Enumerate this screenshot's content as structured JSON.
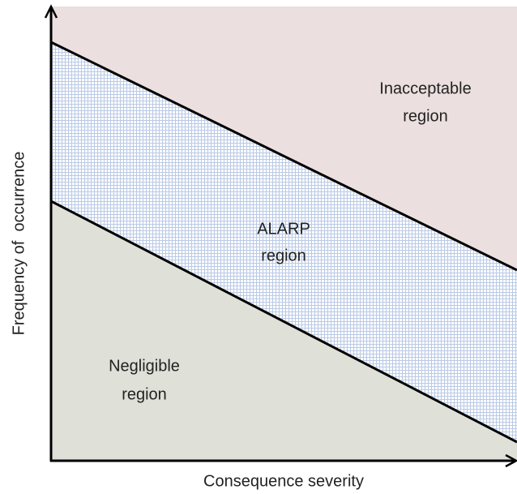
{
  "axes": {
    "x_label": "Consequence severity",
    "y_label": "Frequency of  occurrence"
  },
  "regions": [
    {
      "name": "inacceptable",
      "lines": [
        "Inacceptable",
        "region"
      ]
    },
    {
      "name": "alarp",
      "lines": [
        "ALARP",
        "region"
      ]
    },
    {
      "name": "negligible",
      "lines": [
        "Negligible",
        "region"
      ]
    }
  ]
}
